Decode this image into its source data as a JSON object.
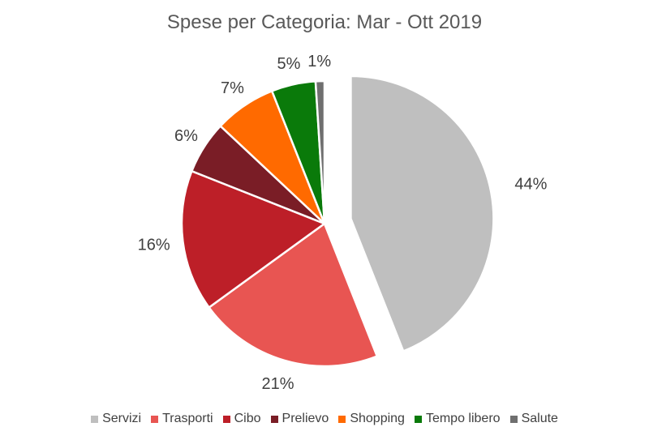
{
  "chart_data": {
    "type": "pie",
    "title": "Spese per Categoria: Mar - Ott 2019",
    "categories": [
      "Servizi",
      "Trasporti",
      "Cibo",
      "Prelievo",
      "Shopping",
      "Tempo libero",
      "Salute"
    ],
    "values": [
      44,
      21,
      16,
      6,
      7,
      5,
      1
    ],
    "data_labels": [
      "44%",
      "21%",
      "16%",
      "6%",
      "7%",
      "5%",
      "1%"
    ],
    "colors": [
      "#bfbfbf",
      "#e85552",
      "#bd1f28",
      "#7a1d26",
      "#ff6a00",
      "#0a7a0a",
      "#6f6f6f"
    ],
    "exploded_slice": "Servizi",
    "legend_position": "bottom"
  }
}
